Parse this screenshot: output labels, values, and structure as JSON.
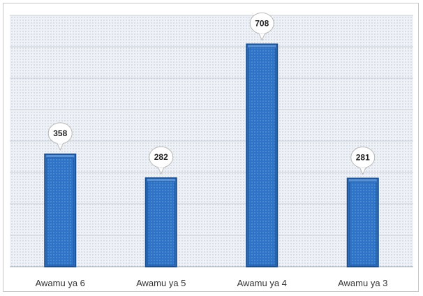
{
  "chart_data": {
    "type": "bar",
    "categories": [
      "Awamu ya 6",
      "Awamu ya 5",
      "Awamu ya 4",
      "Awamu ya 3"
    ],
    "values": [
      358,
      282,
      708,
      281
    ],
    "data_labels": [
      "358",
      "282",
      "708",
      "281"
    ],
    "title": "",
    "xlabel": "",
    "ylabel": "",
    "ylim": [
      0,
      800
    ],
    "grid": true,
    "legend": "none",
    "colors": {
      "bar_fill": "#2e73c6",
      "bar_dark": "#1b4f8f",
      "bar_light": "#5d97dc",
      "plot_background": "#eef1f6",
      "gridline": "#c9cfd8",
      "dot_pattern": "#b7c3d3"
    }
  }
}
